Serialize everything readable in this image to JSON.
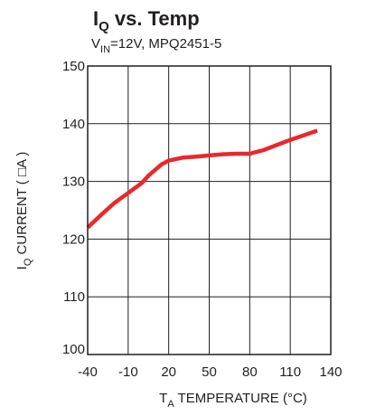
{
  "chart_data": {
    "type": "line",
    "title": {
      "main": "I",
      "sub": "Q",
      "rest": " vs. Temp"
    },
    "subtitle": {
      "main": "V",
      "sub": "IN",
      "rest": "=12V, MPQ2451-5"
    },
    "xlabel": {
      "main": "T",
      "sub": "A",
      "rest": " TEMPERATURE (°C)"
    },
    "ylabel": {
      "main": "I",
      "sub": "Q",
      "rest": " CURRENT ( □A )"
    },
    "xlim": [
      -40,
      140
    ],
    "ylim": [
      100,
      150
    ],
    "xticks": [
      -40,
      -10,
      20,
      50,
      80,
      110,
      140
    ],
    "yticks": [
      100,
      110,
      120,
      130,
      140,
      150
    ],
    "grid": true,
    "series": [
      {
        "color": "#e8292b",
        "x": [
          -40,
          -30,
          -20,
          -10,
          0,
          5,
          10,
          15,
          20,
          30,
          40,
          50,
          60,
          70,
          80,
          90,
          100,
          110,
          120,
          130
        ],
        "y": [
          122,
          124.2,
          126.3,
          128,
          129.7,
          131,
          132,
          133,
          133.6,
          134.1,
          134.3,
          134.5,
          134.7,
          134.8,
          134.8,
          135.4,
          136.3,
          137.2,
          138,
          138.8
        ]
      }
    ]
  }
}
